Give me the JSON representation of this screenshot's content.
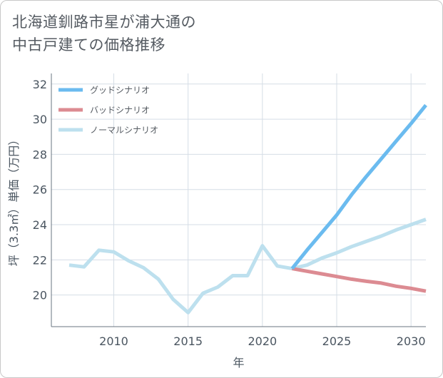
{
  "title_lines": [
    "北海道釧路市星が浦大通の",
    "中古戸建ての価格推移"
  ],
  "chart_data": {
    "type": "line",
    "xlabel": "年",
    "ylabel": "坪（3.3㎡）単価（万円）",
    "xlim": [
      2005.8,
      2031
    ],
    "ylim": [
      18.2,
      32.6
    ],
    "xticks": [
      2010,
      2015,
      2020,
      2025,
      2030
    ],
    "yticks": [
      20,
      22,
      24,
      26,
      28,
      30,
      32
    ],
    "grid": true,
    "legend_position": "top-left",
    "series": [
      {
        "name": "グッドシナリオ",
        "color": "#6bbbef",
        "x": [
          2022,
          2023,
          2024,
          2025,
          2026,
          2027,
          2028,
          2029,
          2030,
          2031
        ],
        "y": [
          21.5,
          22.55,
          23.55,
          24.55,
          25.7,
          26.75,
          27.75,
          28.75,
          29.75,
          30.8
        ]
      },
      {
        "name": "バッドシナリオ",
        "color": "#dc8b92",
        "x": [
          2022,
          2023,
          2024,
          2025,
          2026,
          2027,
          2028,
          2029,
          2030,
          2031
        ],
        "y": [
          21.5,
          21.35,
          21.2,
          21.05,
          20.9,
          20.78,
          20.68,
          20.5,
          20.38,
          20.22
        ]
      },
      {
        "name": "ノーマルシナリオ",
        "color": "#bde0ee",
        "x": [
          2007,
          2008,
          2009,
          2010,
          2011,
          2012,
          2013,
          2014,
          2015,
          2016,
          2017,
          2018,
          2019,
          2020,
          2021,
          2022,
          2023,
          2024,
          2025,
          2026,
          2027,
          2028,
          2029,
          2030,
          2031
        ],
        "y": [
          21.7,
          21.6,
          22.55,
          22.45,
          21.95,
          21.55,
          20.9,
          19.75,
          19.0,
          20.1,
          20.45,
          21.1,
          21.1,
          22.8,
          21.65,
          21.5,
          21.7,
          22.1,
          22.4,
          22.75,
          23.05,
          23.35,
          23.7,
          24.0,
          24.3
        ]
      }
    ]
  }
}
